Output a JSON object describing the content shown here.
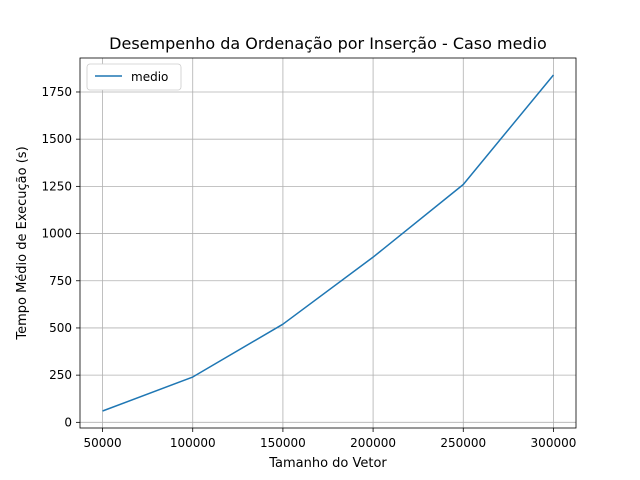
{
  "chart_data": {
    "type": "line",
    "title": "Desempenho da Ordenação por Inserção - Caso medio",
    "xlabel": "Tamanho do Vetor",
    "ylabel": "Tempo Médio de Execução (s)",
    "x": [
      50000,
      100000,
      150000,
      200000,
      250000,
      300000
    ],
    "series": [
      {
        "name": "medio",
        "color": "#1f77b4",
        "values": [
          60,
          240,
          520,
          875,
          1260,
          1840
        ]
      }
    ],
    "xticks": [
      50000,
      100000,
      150000,
      200000,
      250000,
      300000
    ],
    "xtick_labels": [
      "50000",
      "100000",
      "150000",
      "200000",
      "250000",
      "300000"
    ],
    "yticks": [
      0,
      250,
      500,
      750,
      1000,
      1250,
      1500,
      1750
    ],
    "ytick_labels": [
      "0",
      "250",
      "500",
      "750",
      "1000",
      "1250",
      "1500",
      "1750"
    ],
    "xlim": [
      37500,
      312500
    ],
    "ylim": [
      -30,
      1930
    ],
    "grid": true,
    "legend_position": "upper-left"
  }
}
